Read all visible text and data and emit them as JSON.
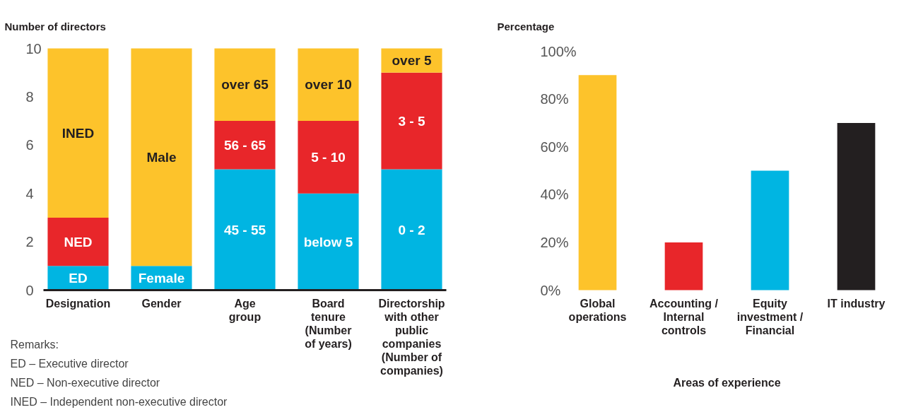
{
  "chart_data": [
    {
      "type": "bar",
      "stacked": true,
      "ylabel": "Number of directors",
      "categories": [
        "Designation",
        "Gender",
        "Age\ngroup",
        "Board\ntenure\n(Number\nof years)",
        "Directorship\nwith other\npublic\ncompanies\n(Number of\ncompanies)"
      ],
      "series": [
        {
          "name": "ED",
          "color": "#00b5e2",
          "values": [
            1,
            null,
            null,
            null,
            null
          ]
        },
        {
          "name": "NED",
          "color": "#e8262a",
          "values": [
            2,
            null,
            null,
            null,
            null
          ]
        },
        {
          "name": "INED",
          "color": "#fdc32b",
          "values": [
            7,
            null,
            null,
            null,
            null
          ]
        },
        {
          "name": "Female",
          "color": "#00b5e2",
          "values": [
            null,
            1,
            null,
            null,
            null
          ]
        },
        {
          "name": "Male",
          "color": "#fdc32b",
          "values": [
            null,
            9,
            null,
            null,
            null
          ]
        },
        {
          "name": "45 - 55",
          "color": "#00b5e2",
          "values": [
            null,
            null,
            5,
            null,
            null
          ]
        },
        {
          "name": "56 - 65",
          "color": "#e8262a",
          "values": [
            null,
            null,
            2,
            null,
            null
          ]
        },
        {
          "name": "over 65",
          "color": "#fdc32b",
          "values": [
            null,
            null,
            3,
            null,
            null
          ]
        },
        {
          "name": "below 5",
          "color": "#00b5e2",
          "values": [
            null,
            null,
            null,
            4,
            null
          ]
        },
        {
          "name": "5 - 10",
          "color": "#e8262a",
          "values": [
            null,
            null,
            null,
            3,
            null
          ]
        },
        {
          "name": "over 10",
          "color": "#fdc32b",
          "values": [
            null,
            null,
            null,
            3,
            null
          ]
        },
        {
          "name": "0 - 2",
          "color": "#00b5e2",
          "values": [
            null,
            null,
            null,
            null,
            5
          ]
        },
        {
          "name": "3 - 5",
          "color": "#e8262a",
          "values": [
            null,
            null,
            null,
            null,
            4
          ]
        },
        {
          "name": "over 5",
          "color": "#fdc32b",
          "values": [
            null,
            null,
            null,
            null,
            1
          ]
        }
      ],
      "ylim": [
        0,
        10
      ],
      "yticks": [
        0,
        2,
        4,
        6,
        8,
        10
      ],
      "annotations": [
        "Remarks:",
        "ED – Executive director",
        "NED – Non-executive director",
        "INED – Independent non-executive director"
      ]
    },
    {
      "type": "bar",
      "ylabel": "Percentage",
      "xlabel": "Areas of experience",
      "categories": [
        "Global\noperations",
        "Accounting /\nInternal\ncontrols",
        "Equity\ninvestment /\nFinancial",
        "IT industry"
      ],
      "values": [
        90,
        20,
        50,
        70
      ],
      "colors": [
        "#fdc32b",
        "#e8262a",
        "#00b5e2",
        "#231f20"
      ],
      "ylim": [
        0,
        100
      ],
      "yticks": [
        {
          "value": 0,
          "label": "0%"
        },
        {
          "value": 20,
          "label": "20%"
        },
        {
          "value": 40,
          "label": "40%"
        },
        {
          "value": 60,
          "label": "60%"
        },
        {
          "value": 80,
          "label": "80%"
        },
        {
          "value": 100,
          "label": "100%"
        }
      ]
    }
  ]
}
